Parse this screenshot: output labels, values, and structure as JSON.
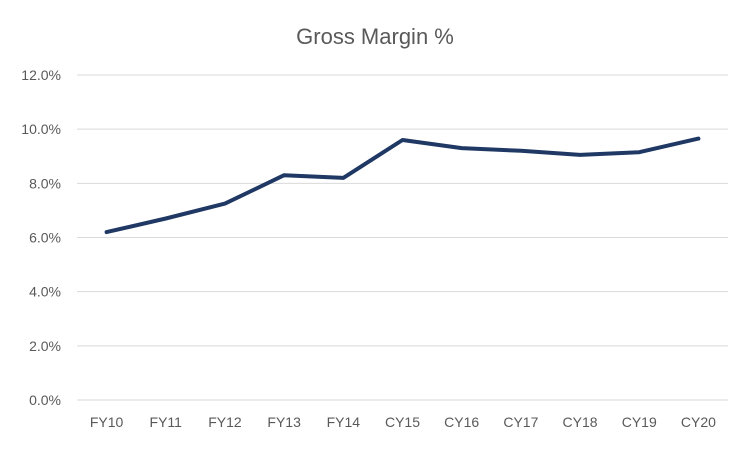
{
  "chart_data": {
    "type": "line",
    "title": "Gross Margin %",
    "categories": [
      "FY10",
      "FY11",
      "FY12",
      "FY13",
      "FY14",
      "CY15",
      "CY16",
      "CY17",
      "CY18",
      "CY19",
      "CY20"
    ],
    "series": [
      {
        "name": "Gross Margin %",
        "values": [
          6.2,
          6.7,
          7.25,
          8.3,
          8.2,
          9.6,
          9.3,
          9.2,
          9.05,
          9.15,
          9.65
        ],
        "color": "#1f3864"
      }
    ],
    "xlabel": "",
    "ylabel": "",
    "ylim": [
      0,
      12
    ],
    "ytick_step": 2,
    "ytick_labels": [
      "0.0%",
      "2.0%",
      "4.0%",
      "6.0%",
      "8.0%",
      "10.0%",
      "12.0%"
    ],
    "grid": true,
    "legend_position": "none",
    "colors": {
      "line": "#1f3864",
      "gridline": "#d9d9d9",
      "axis_label": "#595959",
      "title": "#595959",
      "background": "#ffffff"
    }
  }
}
